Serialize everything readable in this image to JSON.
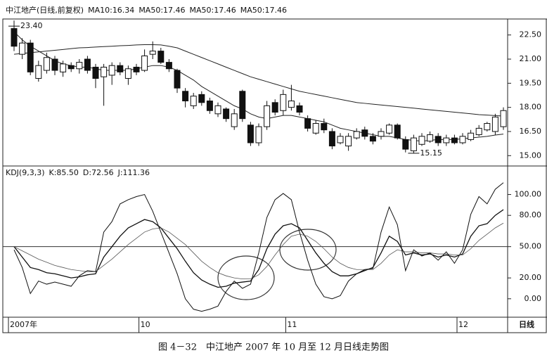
{
  "chart_data": [
    {
      "type": "candlestick",
      "title": "中江地产(日线,前复权)",
      "legend": [
        "MA10:16.34",
        "MA50:17.46",
        "MA50:17.46",
        "MA50:17.46"
      ],
      "open": [
        22.9,
        21.3,
        22.0,
        19.8,
        20.3,
        21.0,
        20.2,
        20.6,
        20.4,
        21.0,
        20.5,
        19.9,
        20.0,
        20.6,
        19.8,
        20.5,
        20.3,
        21.3,
        21.5,
        20.8,
        20.3,
        19.0,
        18.1,
        18.8,
        18.4,
        17.6,
        17.9,
        16.8,
        19.0,
        16.9,
        15.8,
        16.8,
        18.3,
        17.8,
        18.0,
        18.1,
        17.3,
        16.4,
        17.0,
        16.5,
        15.8,
        15.6,
        16.1,
        16.6,
        16.2,
        16.2,
        16.4,
        16.9,
        16.0,
        15.3,
        15.7,
        15.9,
        16.2,
        15.8,
        16.1,
        15.8,
        16.0,
        16.3,
        16.6,
        16.5,
        16.8
      ],
      "high": [
        23.4,
        22.3,
        22.2,
        20.9,
        21.4,
        21.2,
        20.9,
        20.8,
        21.0,
        21.2,
        20.7,
        20.7,
        20.8,
        20.8,
        20.6,
        20.7,
        21.6,
        22.1,
        21.7,
        21.0,
        20.4,
        19.2,
        18.9,
        19.0,
        18.6,
        18.3,
        18.0,
        17.9,
        19.1,
        17.1,
        17.0,
        18.4,
        18.5,
        19.1,
        19.4,
        18.3,
        17.5,
        17.2,
        17.3,
        16.7,
        16.4,
        16.4,
        16.7,
        16.8,
        16.4,
        16.7,
        17.0,
        17.0,
        16.2,
        16.3,
        16.4,
        16.5,
        16.4,
        16.3,
        16.3,
        16.4,
        16.6,
        16.9,
        17.1,
        17.6,
        18.0
      ],
      "low": [
        21.5,
        21.0,
        20.0,
        19.6,
        20.1,
        20.0,
        19.9,
        20.2,
        20.1,
        20.1,
        19.2,
        18.1,
        19.4,
        20.0,
        19.4,
        20.0,
        20.2,
        21.0,
        20.7,
        20.2,
        18.9,
        18.0,
        17.9,
        18.1,
        17.6,
        17.4,
        17.1,
        16.6,
        17.1,
        15.6,
        15.6,
        16.6,
        17.5,
        17.5,
        17.8,
        17.5,
        16.5,
        16.3,
        16.4,
        15.4,
        15.7,
        15.3,
        16.0,
        16.0,
        15.7,
        16.0,
        16.3,
        16.0,
        15.2,
        15.15,
        15.6,
        15.8,
        15.6,
        15.6,
        15.7,
        15.7,
        15.9,
        16.2,
        16.5,
        16.3,
        16.6
      ],
      "close": [
        21.8,
        22.0,
        20.2,
        20.6,
        21.1,
        20.3,
        20.7,
        20.4,
        20.8,
        20.3,
        19.8,
        20.5,
        20.6,
        20.2,
        20.4,
        20.2,
        21.2,
        21.5,
        20.8,
        20.4,
        19.2,
        18.4,
        18.7,
        18.3,
        17.8,
        18.1,
        17.3,
        17.6,
        17.3,
        15.8,
        16.8,
        18.1,
        17.7,
        18.8,
        18.4,
        17.7,
        16.7,
        17.0,
        16.6,
        15.6,
        16.2,
        16.2,
        16.5,
        16.2,
        15.9,
        16.5,
        16.9,
        16.1,
        15.4,
        16.1,
        16.2,
        16.3,
        15.8,
        16.1,
        15.8,
        16.2,
        16.4,
        16.7,
        17.0,
        17.4,
        17.8
      ],
      "series": [
        {
          "color": "#222",
          "values": [
            22.7,
            22.2,
            21.8,
            21.5,
            21.2,
            20.9,
            20.7,
            20.6,
            20.5,
            20.5,
            20.4,
            20.3,
            20.3,
            20.3,
            20.3,
            20.4,
            20.5,
            20.6,
            20.6,
            20.5,
            20.3,
            20.0,
            19.7,
            19.3,
            19.0,
            18.7,
            18.4,
            18.1,
            17.9,
            17.6,
            17.4,
            17.3,
            17.4,
            17.5,
            17.5,
            17.4,
            17.3,
            17.2,
            17.1,
            16.9,
            16.7,
            16.6,
            16.5,
            16.4,
            16.3,
            16.2,
            16.2,
            16.1,
            16.0,
            15.95,
            15.9,
            15.95,
            16.0,
            16.0,
            16.0,
            16.05,
            16.1,
            16.15,
            16.2,
            16.28,
            16.34
          ]
        },
        {
          "color": "#222",
          "values": [
            21.3,
            21.35,
            21.4,
            21.45,
            21.5,
            21.55,
            21.6,
            21.65,
            21.7,
            21.72,
            21.75,
            21.78,
            21.8,
            21.83,
            21.85,
            21.88,
            21.9,
            21.9,
            21.88,
            21.8,
            21.7,
            21.5,
            21.3,
            21.1,
            20.9,
            20.7,
            20.5,
            20.3,
            20.1,
            19.9,
            19.75,
            19.6,
            19.45,
            19.3,
            19.15,
            19.0,
            18.9,
            18.8,
            18.7,
            18.6,
            18.5,
            18.4,
            18.3,
            18.25,
            18.2,
            18.15,
            18.1,
            18.05,
            18.0,
            17.95,
            17.9,
            17.85,
            17.8,
            17.75,
            17.7,
            17.65,
            17.6,
            17.55,
            17.52,
            17.49,
            17.46
          ]
        }
      ],
      "annotations": [
        {
          "text": "23.40",
          "y": 23.4
        },
        {
          "text": "15.15",
          "y": 15.15
        }
      ],
      "ylim": [
        14.4,
        23.45
      ],
      "yticks": [
        {
          "value": 22.5,
          "label": "22.50"
        },
        {
          "value": 21,
          "label": "21.00"
        },
        {
          "value": 19.5,
          "label": "19.50"
        },
        {
          "value": 18,
          "label": "18.00"
        },
        {
          "value": 16.5,
          "label": "16.50"
        },
        {
          "value": 15,
          "label": "15.00"
        }
      ]
    },
    {
      "type": "line",
      "title": "KDJ(9,3,3)",
      "categories": [
        "2007年",
        null,
        null,
        null,
        null,
        null,
        null,
        null,
        null,
        null,
        null,
        null,
        null,
        null,
        null,
        null,
        "10",
        null,
        null,
        null,
        null,
        null,
        null,
        null,
        null,
        null,
        null,
        null,
        null,
        null,
        null,
        null,
        null,
        null,
        "11",
        null,
        null,
        null,
        null,
        null,
        null,
        null,
        null,
        null,
        null,
        null,
        null,
        null,
        null,
        null,
        null,
        null,
        null,
        null,
        null,
        "12",
        null,
        null,
        null,
        null,
        null
      ],
      "period_label": "日线",
      "series": [
        {
          "label": "K:85.50",
          "color": "#111",
          "width": 1.3,
          "values": [
            50,
            40,
            30,
            28,
            25,
            24,
            22,
            20,
            21,
            23,
            24,
            40,
            50,
            60,
            68,
            72,
            76,
            74,
            68,
            58,
            48,
            36,
            25,
            18,
            14,
            11,
            12,
            15,
            16,
            17,
            28,
            48,
            62,
            70,
            72,
            68,
            56,
            44,
            34,
            26,
            22,
            22,
            24,
            27,
            30,
            44,
            60,
            55,
            42,
            44,
            42,
            43,
            40,
            42,
            40,
            43,
            60,
            70,
            72,
            80,
            85.5
          ]
        },
        {
          "label": "D:72.56",
          "color": "#555",
          "width": 0.8,
          "values": [
            50,
            46,
            42,
            38,
            35,
            32,
            30,
            28,
            27,
            26,
            26,
            32,
            38,
            45,
            52,
            58,
            64,
            67,
            68,
            64,
            58,
            52,
            44,
            36,
            30,
            25,
            22,
            20,
            19,
            19,
            23,
            31,
            42,
            52,
            60,
            62,
            60,
            55,
            48,
            40,
            34,
            30,
            28,
            28,
            28,
            34,
            42,
            47,
            45,
            45,
            44,
            44,
            43,
            43,
            42,
            42,
            48,
            56,
            62,
            68,
            72.56
          ]
        },
        {
          "label": "J:111.36",
          "color": "#111",
          "width": 1,
          "values": [
            47,
            30,
            5,
            17,
            14,
            16,
            14,
            12,
            22,
            27,
            26,
            64,
            74,
            91,
            95,
            98,
            100,
            84,
            64,
            44,
            24,
            0,
            -10,
            -12,
            -10,
            -7,
            7,
            17,
            10,
            14,
            44,
            78,
            95,
            101,
            95,
            64,
            37,
            14,
            2,
            0,
            3,
            17,
            24,
            28,
            29,
            64,
            88,
            71,
            27,
            47,
            41,
            44,
            37,
            45,
            34,
            47,
            81,
            98,
            91,
            105,
            111.36
          ]
        }
      ],
      "hline": 50,
      "ylim": [
        -17,
        126
      ],
      "yticks": [
        {
          "value": 100,
          "label": "100.00"
        },
        {
          "value": 80,
          "label": "80.00"
        },
        {
          "value": 50,
          "label": "50.00"
        },
        {
          "value": 20,
          "label": "20.00"
        },
        {
          "value": 0,
          "label": "0.00"
        }
      ]
    }
  ],
  "caption": "图 4－32　中江地产 2007 年 10 月至 12 月日线走势图"
}
